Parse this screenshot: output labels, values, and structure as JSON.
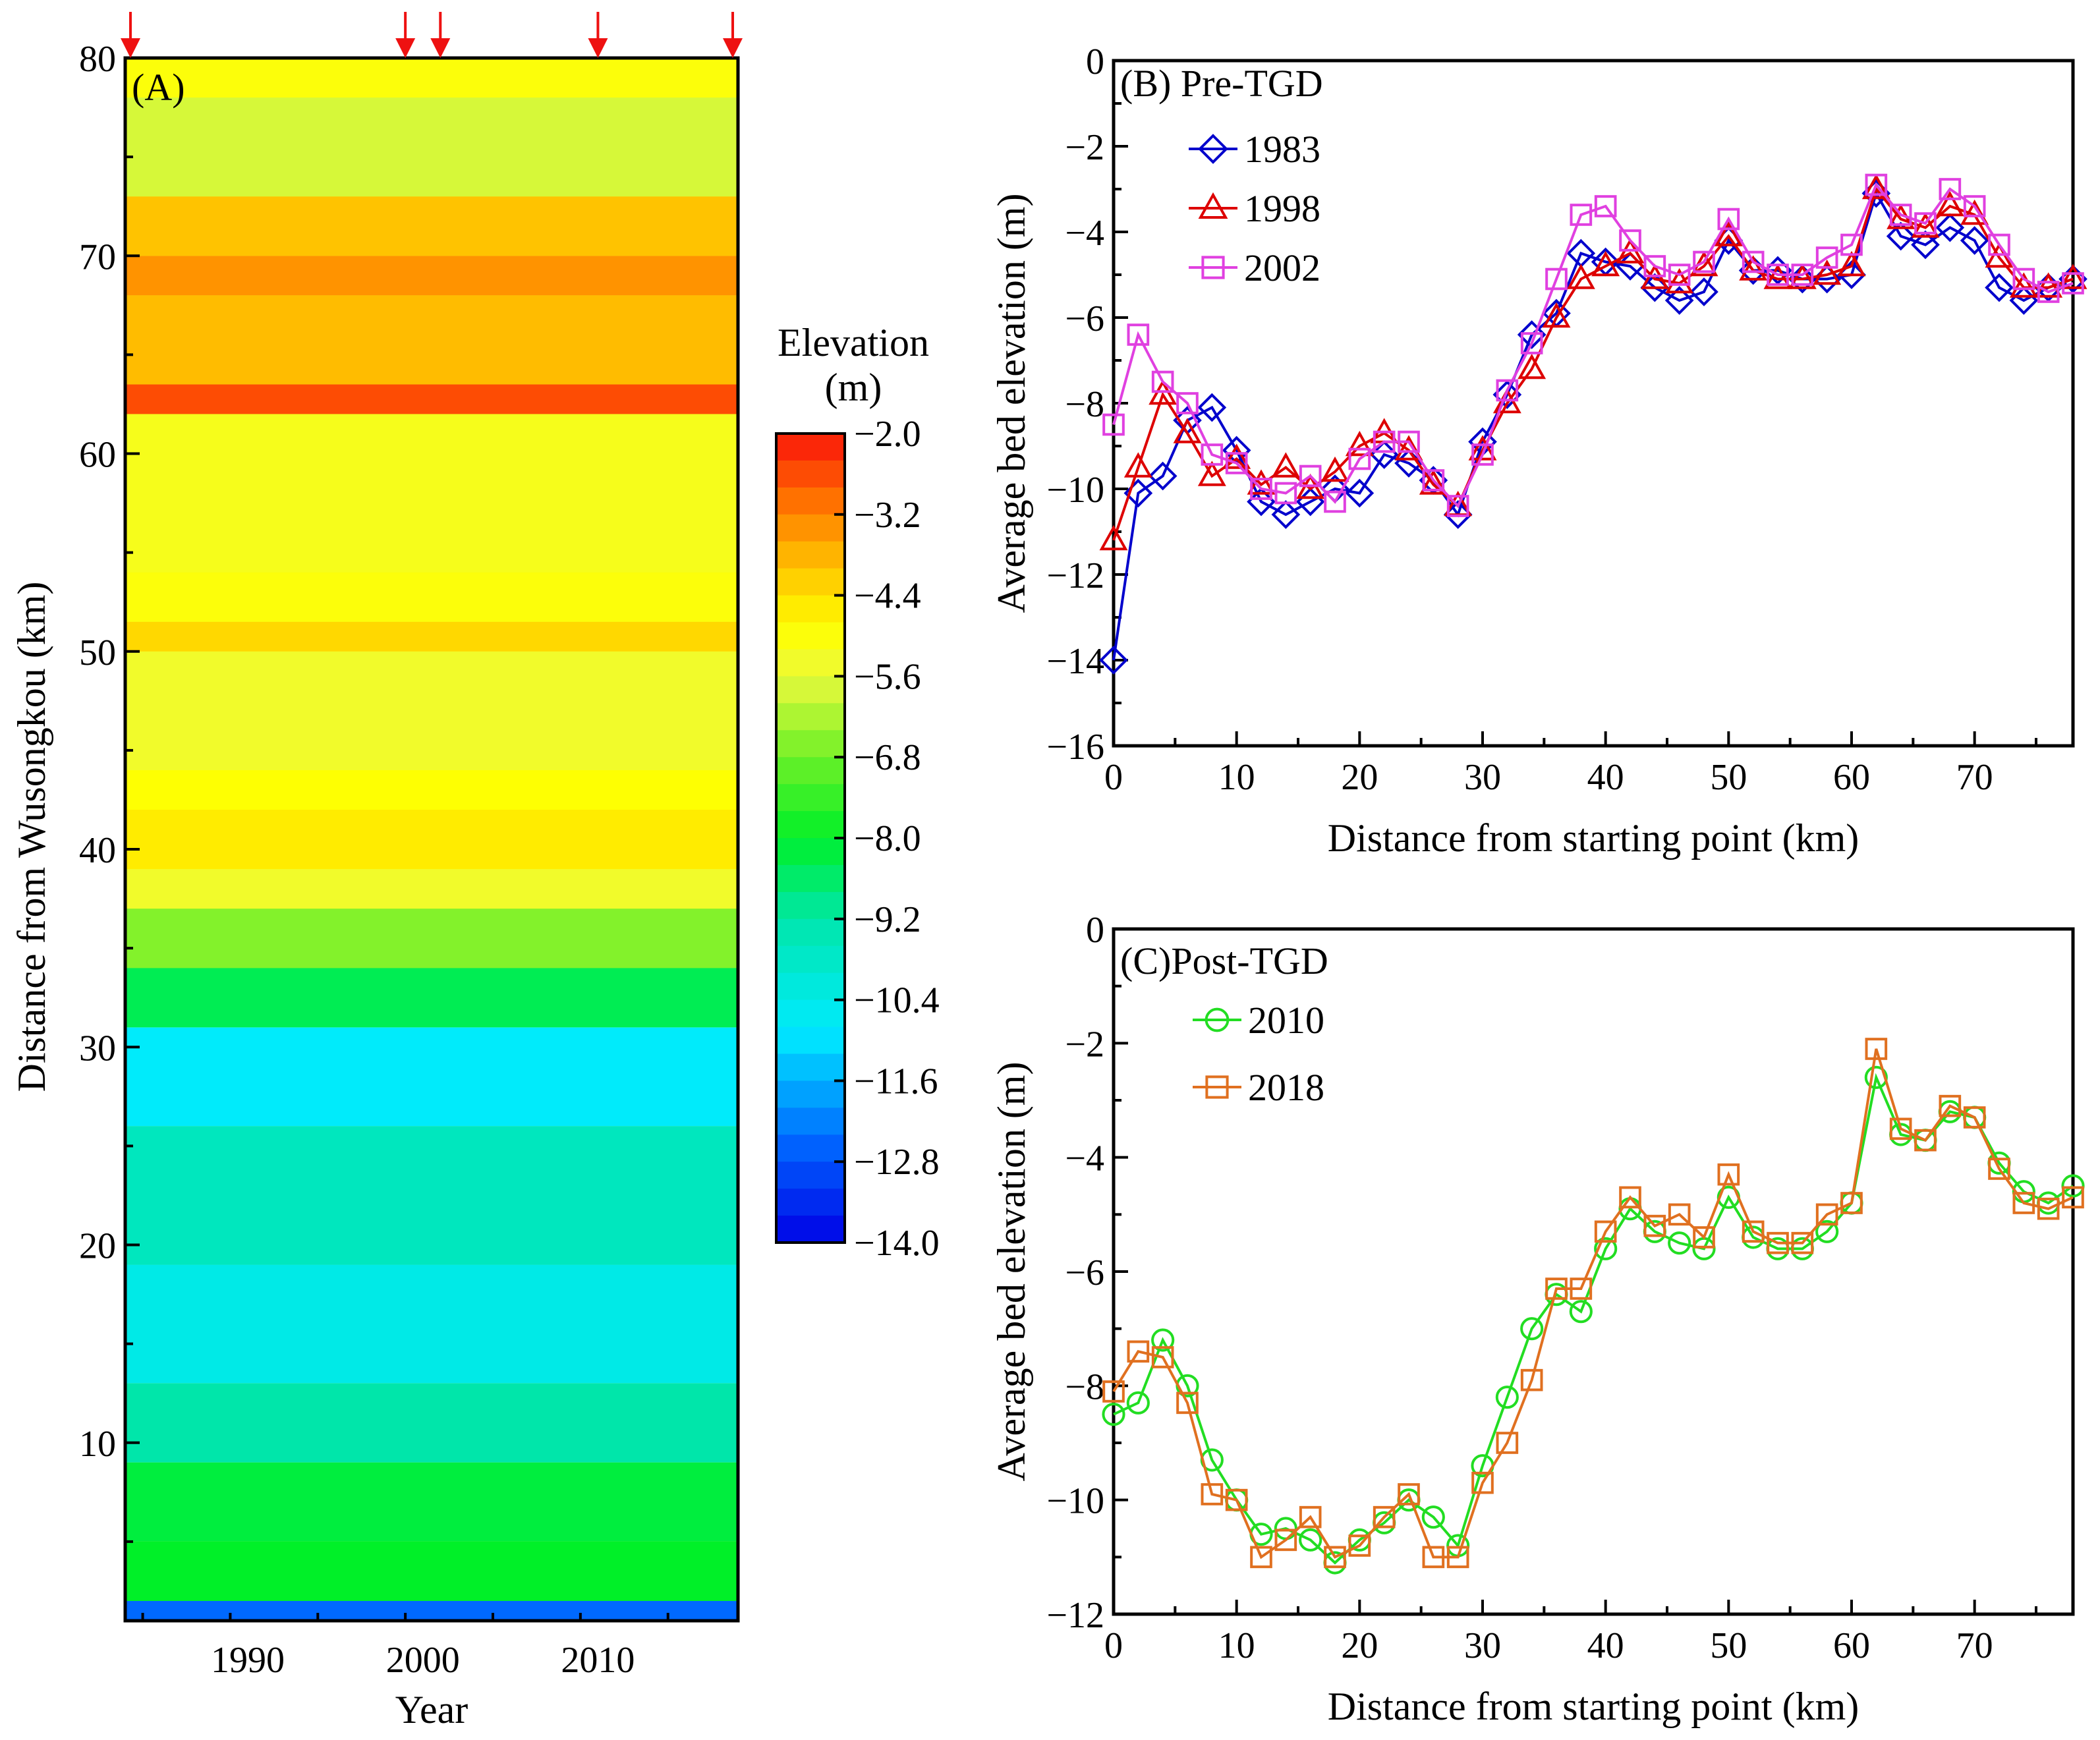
{
  "chart_data": [
    {
      "panel": "A",
      "type": "heatmap",
      "title": "(A)",
      "xlabel": "Year",
      "ylabel": "Distance from Wusongkou (km)",
      "xlim": [
        1983,
        2018
      ],
      "ylim": [
        1,
        80
      ],
      "xticks": [
        1990,
        2000,
        2010
      ],
      "yticks": [
        10,
        20,
        30,
        40,
        50,
        60,
        70,
        80
      ],
      "survey_years_marked": [
        1983,
        1999,
        2001,
        2010,
        2018
      ],
      "colorbar": {
        "title_line1": "Elevation",
        "title_line2": "(m)",
        "min": -14.0,
        "max": -2.0,
        "tick_values": [
          -2.0,
          -3.2,
          -4.4,
          -5.6,
          -6.8,
          -8.0,
          -9.2,
          -10.4,
          -11.6,
          -12.8,
          -14.0
        ],
        "tick_labels": [
          "−2.0",
          "−3.2",
          "−4.4",
          "−5.6",
          "−6.8",
          "−8.0",
          "−9.2",
          "−10.4",
          "−11.6",
          "−12.8",
          "−14.0"
        ],
        "levels": 30
      },
      "bands_km_elevation": [
        {
          "from": 1,
          "to": 2,
          "value": -12.5
        },
        {
          "from": 2,
          "to": 5,
          "value": -8.0
        },
        {
          "from": 5,
          "to": 9,
          "value": -8.2
        },
        {
          "from": 9,
          "to": 13,
          "value": -9.2
        },
        {
          "from": 13,
          "to": 19,
          "value": -10.4
        },
        {
          "from": 19,
          "to": 26,
          "value": -9.6
        },
        {
          "from": 26,
          "to": 31,
          "value": -10.8
        },
        {
          "from": 31,
          "to": 34,
          "value": -8.4
        },
        {
          "from": 34,
          "to": 37,
          "value": -6.6
        },
        {
          "from": 37,
          "to": 39,
          "value": -5.4
        },
        {
          "from": 39,
          "to": 42,
          "value": -4.6
        },
        {
          "from": 42,
          "to": 44,
          "value": -4.9
        },
        {
          "from": 44,
          "to": 50,
          "value": -5.4
        },
        {
          "from": 50,
          "to": 51.5,
          "value": -4.3
        },
        {
          "from": 51.5,
          "to": 54,
          "value": -5.0
        },
        {
          "from": 54,
          "to": 62,
          "value": -5.2
        },
        {
          "from": 62,
          "to": 63.5,
          "value": -2.6
        },
        {
          "from": 63.5,
          "to": 68,
          "value": -3.9
        },
        {
          "from": 68,
          "to": 70,
          "value": -3.4
        },
        {
          "from": 70,
          "to": 73,
          "value": -4.0
        },
        {
          "from": 73,
          "to": 78,
          "value": -5.8
        },
        {
          "from": 78,
          "to": 80,
          "value": -5.0
        }
      ]
    },
    {
      "panel": "B",
      "type": "line",
      "title": "(B) Pre-TGD",
      "xlabel": "Distance from starting point (km)",
      "ylabel": "Average bed elevation (m)",
      "xlim": [
        0,
        78
      ],
      "ylim": [
        -16,
        0
      ],
      "xticks": [
        0,
        10,
        20,
        30,
        40,
        50,
        60,
        70
      ],
      "yticks": [
        0,
        -2,
        -4,
        -6,
        -8,
        -10,
        -12,
        -14,
        -16
      ],
      "x": [
        0,
        2,
        4,
        6,
        8,
        10,
        12,
        14,
        16,
        18,
        20,
        22,
        24,
        26,
        28,
        30,
        32,
        34,
        36,
        38,
        40,
        42,
        44,
        46,
        48,
        50,
        52,
        54,
        56,
        58,
        60,
        62,
        64,
        66,
        68,
        70,
        72,
        74,
        76,
        78
      ],
      "series": [
        {
          "name": "1983",
          "color": "#0000cc",
          "marker": "diamond",
          "values": [
            -14.0,
            -10.1,
            -9.7,
            -8.4,
            -8.1,
            -9.1,
            -10.3,
            -10.6,
            -10.3,
            -10.0,
            -10.1,
            -9.2,
            -9.4,
            -9.8,
            -10.6,
            -8.9,
            -7.8,
            -6.4,
            -5.9,
            -4.5,
            -4.7,
            -4.8,
            -5.3,
            -5.6,
            -5.4,
            -4.2,
            -4.9,
            -4.9,
            -5.1,
            -5.1,
            -5.0,
            -3.1,
            -4.1,
            -4.3,
            -3.9,
            -4.2,
            -5.3,
            -5.6,
            -5.3,
            -5.1
          ]
        },
        {
          "name": "1998",
          "color": "#dd0000",
          "marker": "triangle",
          "values": [
            -11.2,
            -9.5,
            -7.8,
            -8.7,
            -9.7,
            -9.3,
            -9.9,
            -9.5,
            -10.0,
            -9.6,
            -9.0,
            -8.7,
            -9.1,
            -9.9,
            -10.4,
            -9.1,
            -8.0,
            -7.2,
            -6.0,
            -5.1,
            -4.8,
            -4.5,
            -5.1,
            -5.2,
            -4.8,
            -4.1,
            -4.9,
            -5.1,
            -5.1,
            -5.0,
            -4.8,
            -3.0,
            -3.7,
            -3.9,
            -3.4,
            -3.6,
            -4.6,
            -5.3,
            -5.3,
            -5.1
          ]
        },
        {
          "name": "2002",
          "color": "#e040e0",
          "marker": "square",
          "values": [
            -8.5,
            -6.4,
            -7.5,
            -8.0,
            -9.2,
            -9.4,
            -10.0,
            -10.1,
            -9.7,
            -10.3,
            -9.3,
            -8.9,
            -8.9,
            -9.8,
            -10.4,
            -9.2,
            -7.7,
            -6.6,
            -5.1,
            -3.6,
            -3.4,
            -4.2,
            -4.8,
            -5.0,
            -4.7,
            -3.7,
            -4.7,
            -5.0,
            -5.0,
            -4.6,
            -4.3,
            -2.9,
            -3.6,
            -3.8,
            -3.0,
            -3.4,
            -4.3,
            -5.1,
            -5.4,
            -5.2
          ]
        }
      ]
    },
    {
      "panel": "C",
      "type": "line",
      "title": "(C)Post-TGD",
      "xlabel": "Distance from starting point (km)",
      "ylabel": "Average bed elevation (m)",
      "xlim": [
        0,
        78
      ],
      "ylim": [
        -12,
        0
      ],
      "xticks": [
        0,
        10,
        20,
        30,
        40,
        50,
        60,
        70
      ],
      "yticks": [
        0,
        -2,
        -4,
        -6,
        -8,
        -10,
        -12
      ],
      "x": [
        0,
        2,
        4,
        6,
        8,
        10,
        12,
        14,
        16,
        18,
        20,
        22,
        24,
        26,
        28,
        30,
        32,
        34,
        36,
        38,
        40,
        42,
        44,
        46,
        48,
        50,
        52,
        54,
        56,
        58,
        60,
        62,
        64,
        66,
        68,
        70,
        72,
        74,
        76,
        78
      ],
      "series": [
        {
          "name": "2010",
          "color": "#22dd22",
          "marker": "circle",
          "values": [
            -8.5,
            -8.3,
            -7.2,
            -8.0,
            -9.3,
            -10.0,
            -10.6,
            -10.5,
            -10.7,
            -11.1,
            -10.7,
            -10.4,
            -10.0,
            -10.3,
            -10.8,
            -9.4,
            -8.2,
            -7.0,
            -6.4,
            -6.7,
            -5.6,
            -4.9,
            -5.3,
            -5.5,
            -5.6,
            -4.7,
            -5.4,
            -5.6,
            -5.6,
            -5.3,
            -4.8,
            -2.6,
            -3.6,
            -3.7,
            -3.2,
            -3.3,
            -4.1,
            -4.6,
            -4.8,
            -4.5
          ]
        },
        {
          "name": "2018",
          "color": "#e07020",
          "marker": "square",
          "values": [
            -8.1,
            -7.4,
            -7.5,
            -8.3,
            -9.9,
            -10.0,
            -11.0,
            -10.7,
            -10.3,
            -11.0,
            -10.8,
            -10.3,
            -9.9,
            -11.0,
            -11.0,
            -9.7,
            -9.0,
            -7.9,
            -6.3,
            -6.3,
            -5.3,
            -4.7,
            -5.2,
            -5.0,
            -5.4,
            -4.3,
            -5.3,
            -5.5,
            -5.5,
            -5.0,
            -4.8,
            -2.1,
            -3.5,
            -3.7,
            -3.1,
            -3.3,
            -4.2,
            -4.8,
            -4.9,
            -4.7
          ]
        }
      ]
    }
  ]
}
